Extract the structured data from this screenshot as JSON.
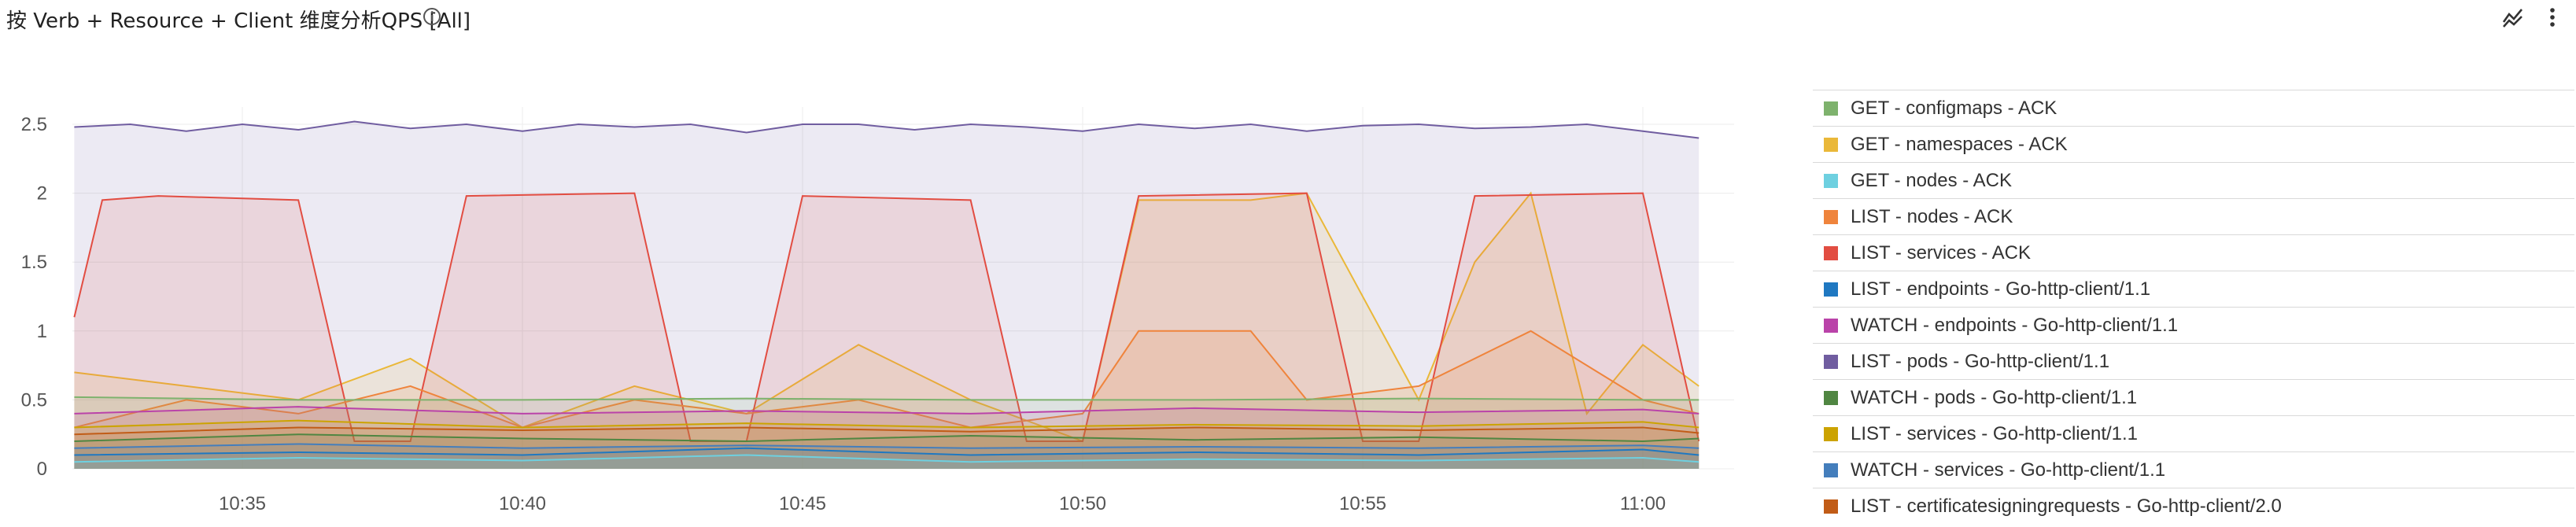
{
  "header": {
    "title": "按 Verb + Resource + Client 维度分析QPS [All]",
    "icons": [
      "info-icon",
      "chart-style-icon",
      "more-vert-icon"
    ]
  },
  "chart_data": {
    "type": "area",
    "title": "按 Verb + Resource + Client 维度分析QPS [All]",
    "xlabel": "",
    "ylabel": "",
    "ylim": [
      0,
      2.75
    ],
    "x_ticks": [
      "10:35",
      "10:40",
      "10:45",
      "10:50",
      "10:55",
      "11:00"
    ],
    "y_ticks": [
      "0",
      "0.5",
      "1",
      "1.5",
      "2",
      "2.5"
    ],
    "grid": true,
    "legend_position": "right",
    "series": [
      {
        "name": "GET - configmaps - ACK",
        "color": "#7eb26d",
        "x": [
          "10:32",
          "10:36",
          "10:40",
          "10:44",
          "10:48",
          "10:52",
          "10:56",
          "11:00",
          "11:01"
        ],
        "values": [
          0.52,
          0.5,
          0.5,
          0.51,
          0.5,
          0.5,
          0.51,
          0.5,
          0.5
        ]
      },
      {
        "name": "GET - namespaces - ACK",
        "color": "#eab839",
        "x": [
          "10:32",
          "10:34",
          "10:36",
          "10:38",
          "10:40",
          "10:42",
          "10:44",
          "10:46",
          "10:48",
          "10:50",
          "10:51",
          "10:53",
          "10:54",
          "10:56",
          "10:57",
          "10:58",
          "10:59",
          "11:00",
          "11:01"
        ],
        "values": [
          0.7,
          0.6,
          0.5,
          0.8,
          0.3,
          0.6,
          0.4,
          0.9,
          0.5,
          0.2,
          1.95,
          1.95,
          2.0,
          0.5,
          1.5,
          2.0,
          0.4,
          0.9,
          0.6
        ]
      },
      {
        "name": "GET - nodes - ACK",
        "color": "#6ed0e0",
        "x": [
          "10:32",
          "10:36",
          "10:40",
          "10:44",
          "10:48",
          "10:52",
          "10:56",
          "11:00",
          "11:01"
        ],
        "values": [
          0.05,
          0.08,
          0.06,
          0.1,
          0.05,
          0.07,
          0.06,
          0.08,
          0.05
        ]
      },
      {
        "name": "LIST - nodes - ACK",
        "color": "#ef843c",
        "x": [
          "10:32",
          "10:34",
          "10:36",
          "10:38",
          "10:40",
          "10:42",
          "10:44",
          "10:46",
          "10:48",
          "10:50",
          "10:51",
          "10:53",
          "10:54",
          "10:56",
          "10:58",
          "11:00",
          "11:01"
        ],
        "values": [
          0.3,
          0.5,
          0.4,
          0.6,
          0.3,
          0.5,
          0.4,
          0.5,
          0.3,
          0.4,
          1.0,
          1.0,
          0.5,
          0.6,
          1.0,
          0.5,
          0.4
        ]
      },
      {
        "name": "LIST - services - ACK",
        "color": "#e24d42",
        "x": [
          "10:32",
          "10:32.5",
          "10:33.5",
          "10:36",
          "10:37",
          "10:38",
          "10:39",
          "10:42",
          "10:43",
          "10:44",
          "10:45",
          "10:48",
          "10:49",
          "10:50",
          "10:51",
          "10:54",
          "10:55",
          "10:56",
          "10:57",
          "11:00",
          "11:01"
        ],
        "values": [
          1.1,
          1.95,
          1.98,
          1.95,
          0.2,
          0.2,
          1.98,
          2.0,
          0.2,
          0.2,
          1.98,
          1.95,
          0.2,
          0.2,
          1.98,
          2.0,
          0.2,
          0.2,
          1.98,
          2.0,
          0.2
        ]
      },
      {
        "name": "LIST - endpoints - Go-http-client/1.1",
        "color": "#1f78c1",
        "x": [
          "10:32",
          "10:36",
          "10:40",
          "10:44",
          "10:48",
          "10:52",
          "10:56",
          "11:00",
          "11:01"
        ],
        "values": [
          0.1,
          0.12,
          0.1,
          0.15,
          0.1,
          0.12,
          0.1,
          0.14,
          0.1
        ]
      },
      {
        "name": "WATCH - endpoints - Go-http-client/1.1",
        "color": "#ba43a9",
        "x": [
          "10:32",
          "10:36",
          "10:40",
          "10:44",
          "10:48",
          "10:52",
          "10:56",
          "11:00",
          "11:01"
        ],
        "values": [
          0.4,
          0.45,
          0.4,
          0.42,
          0.4,
          0.44,
          0.41,
          0.43,
          0.4
        ]
      },
      {
        "name": "LIST - pods - Go-http-client/1.1",
        "color": "#705da0",
        "x": [
          "10:32",
          "10:33",
          "10:34",
          "10:35",
          "10:36",
          "10:37",
          "10:38",
          "10:39",
          "10:40",
          "10:41",
          "10:42",
          "10:43",
          "10:44",
          "10:45",
          "10:46",
          "10:47",
          "10:48",
          "10:49",
          "10:50",
          "10:51",
          "10:52",
          "10:53",
          "10:54",
          "10:55",
          "10:56",
          "10:57",
          "10:58",
          "10:59",
          "11:00",
          "11:01"
        ],
        "values": [
          2.48,
          2.5,
          2.45,
          2.5,
          2.46,
          2.52,
          2.47,
          2.5,
          2.45,
          2.5,
          2.48,
          2.5,
          2.44,
          2.5,
          2.5,
          2.46,
          2.5,
          2.48,
          2.45,
          2.5,
          2.47,
          2.5,
          2.45,
          2.49,
          2.5,
          2.47,
          2.48,
          2.5,
          2.45,
          2.4
        ]
      },
      {
        "name": "WATCH - pods - Go-http-client/1.1",
        "color": "#508642",
        "x": [
          "10:32",
          "10:36",
          "10:40",
          "10:44",
          "10:48",
          "10:52",
          "10:56",
          "11:00",
          "11:01"
        ],
        "values": [
          0.2,
          0.25,
          0.22,
          0.2,
          0.24,
          0.21,
          0.23,
          0.2,
          0.22
        ]
      },
      {
        "name": "LIST - services - Go-http-client/1.1",
        "color": "#cca300",
        "x": [
          "10:32",
          "10:36",
          "10:40",
          "10:44",
          "10:48",
          "10:52",
          "10:56",
          "11:00",
          "11:01"
        ],
        "values": [
          0.3,
          0.35,
          0.3,
          0.33,
          0.3,
          0.32,
          0.31,
          0.34,
          0.3
        ]
      },
      {
        "name": "WATCH - services - Go-http-client/1.1",
        "color": "#447ebc",
        "x": [
          "10:32",
          "10:36",
          "10:40",
          "10:44",
          "10:48",
          "10:52",
          "10:56",
          "11:00",
          "11:01"
        ],
        "values": [
          0.15,
          0.18,
          0.15,
          0.17,
          0.15,
          0.16,
          0.15,
          0.17,
          0.15
        ]
      },
      {
        "name": "LIST - certificatesigningrequests - Go-http-client/2.0",
        "color": "#c15c17",
        "x": [
          "10:32",
          "10:36",
          "10:40",
          "10:44",
          "10:48",
          "10:52",
          "10:56",
          "11:00",
          "11:01"
        ],
        "values": [
          0.25,
          0.3,
          0.28,
          0.3,
          0.27,
          0.3,
          0.28,
          0.3,
          0.26
        ]
      }
    ]
  }
}
